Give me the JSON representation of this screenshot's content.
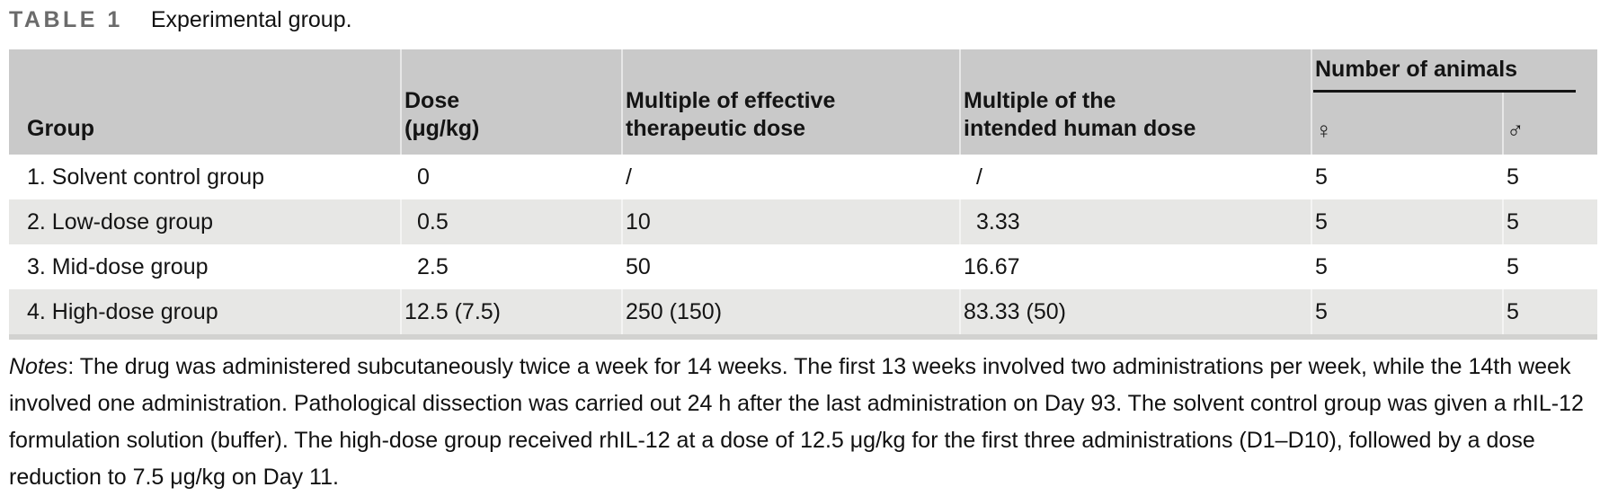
{
  "title": {
    "label": "TABLE 1",
    "caption": "Experimental group."
  },
  "table": {
    "header": {
      "group": "Group",
      "dose_line1": "Dose",
      "dose_line2": "(μg/kg)",
      "eff_line1": "Multiple of effective",
      "eff_line2": "therapeutic dose",
      "human_line1": "Multiple of the",
      "human_line2": "intended human dose",
      "animals": "Number of animals",
      "female_symbol": "♀",
      "male_symbol": "♂"
    },
    "rows": [
      {
        "group": "1. Solvent control group",
        "dose": "0",
        "eff": "/",
        "human": "/",
        "female": "5",
        "male": "5"
      },
      {
        "group": "2. Low-dose group",
        "dose": "0.5",
        "eff": "10",
        "human": "3.33",
        "female": "5",
        "male": "5"
      },
      {
        "group": "3. Mid-dose group",
        "dose": "2.5",
        "eff": "50",
        "human": "16.67",
        "female": "5",
        "male": "5"
      },
      {
        "group": "4. High-dose group",
        "dose": "12.5 (7.5)",
        "eff": "250 (150)",
        "human": "83.33 (50)",
        "female": "5",
        "male": "5"
      }
    ]
  },
  "notes": {
    "label": "Notes",
    "text": ": The drug was administered subcutaneously twice a week for 14 weeks. The first 13 weeks involved two administrations per week, while the 14th week involved one administration. Pathological dissection was carried out 24 h after the last administration on Day 93. The solvent control group was given a rhIL-12 formulation solution (buffer). The high-dose group received rhIL-12 at a dose of 12.5 μg/kg for the first three administrations (D1–D10), followed by a dose reduction to 7.5 μg/kg on Day 11."
  },
  "colors": {
    "header_bg": "#c9c9c9",
    "row_alt_bg": "#e7e7e5",
    "row_bg": "#ffffff",
    "bottom_strip": "#d2d2d0",
    "title_label": "#6b6b6b",
    "text": "#141414"
  }
}
